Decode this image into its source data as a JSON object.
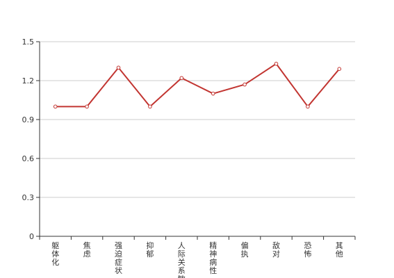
{
  "chart_data": {
    "type": "line",
    "categories": [
      "躯体化",
      "焦虑",
      "强迫症状",
      "抑郁",
      "人际关系敏感",
      "精神病性",
      "偏执",
      "敌对",
      "恐怖",
      "其他"
    ],
    "series": [
      {
        "values": [
          1.0,
          1.0,
          1.3,
          1.0,
          1.22,
          1.1,
          1.17,
          1.33,
          1.0,
          1.29
        ]
      }
    ],
    "yticks": [
      "0",
      "0.3",
      "0.6",
      "0.9",
      "1.2",
      "1.5"
    ],
    "ylim": [
      0,
      1.5
    ],
    "grid": true,
    "colors": {
      "line": "#c23531",
      "grid": "#cccccc",
      "axis": "#333333"
    }
  }
}
